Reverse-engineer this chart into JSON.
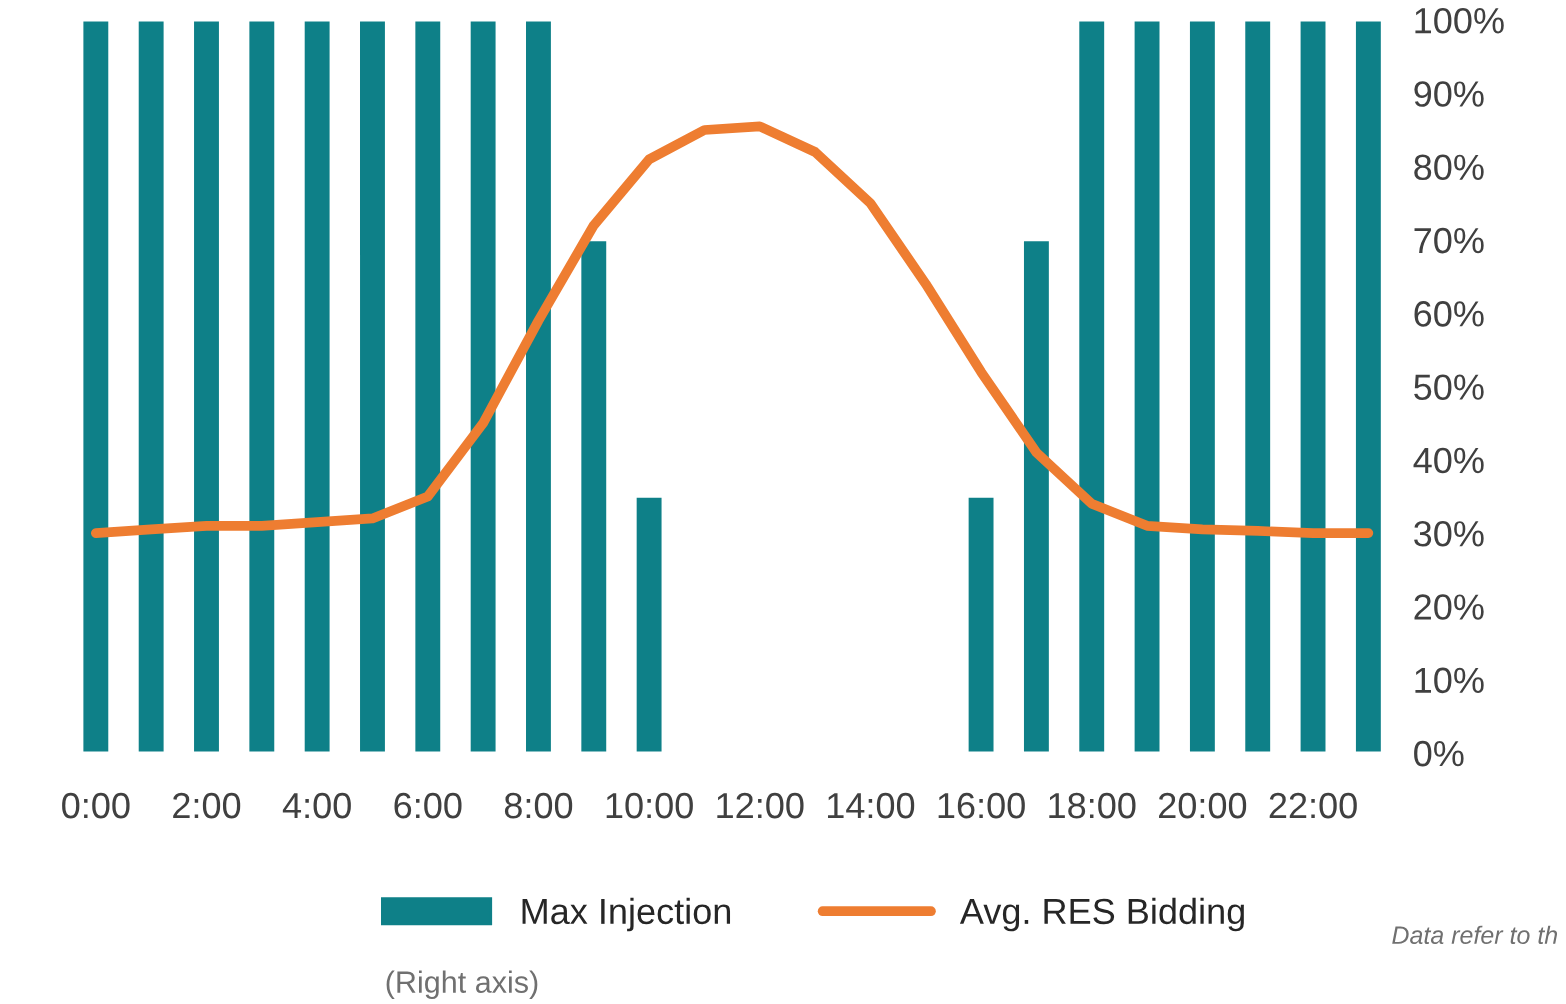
{
  "chart_data": {
    "type": "bar",
    "categories": [
      "0:00",
      null,
      "2:00",
      null,
      "4:00",
      null,
      "6:00",
      null,
      "8:00",
      null,
      "10:00",
      null,
      "12:00",
      null,
      "14:00",
      null,
      "16:00",
      null,
      "18:00",
      null,
      "20:00",
      null,
      "22:00",
      null
    ],
    "series": [
      {
        "name": "Max Injection",
        "axis": "y2",
        "color": "#0e8088",
        "values": [
          100,
          100,
          100,
          100,
          100,
          100,
          100,
          100,
          100,
          70,
          35,
          null,
          null,
          null,
          null,
          null,
          35,
          70,
          100,
          100,
          100,
          100,
          100,
          100
        ]
      },
      {
        "name": "Avg. RES Bidding",
        "type": "line",
        "axis": "y2",
        "color": "#ee7d31",
        "values": [
          30,
          30.5,
          31,
          31,
          31.5,
          32,
          35,
          45,
          59,
          72,
          81,
          85,
          85.5,
          82,
          75,
          64,
          52,
          41,
          34,
          31,
          30.5,
          30.3,
          30,
          30
        ]
      }
    ],
    "y2lim": [
      0,
      100
    ],
    "y2ticks": [
      {
        "value": 0,
        "label": "0%"
      },
      {
        "value": 10,
        "label": "10%"
      },
      {
        "value": 20,
        "label": "20%"
      },
      {
        "value": 30,
        "label": "30%"
      },
      {
        "value": 40,
        "label": "40%"
      },
      {
        "value": 50,
        "label": "50%"
      },
      {
        "value": 60,
        "label": "60%"
      },
      {
        "value": 70,
        "label": "70%"
      },
      {
        "value": 80,
        "label": "80%"
      },
      {
        "value": 90,
        "label": "90%"
      },
      {
        "value": 100,
        "label": "100%"
      }
    ],
    "grid": false,
    "legend": "bottom",
    "annotations": [
      "(Right axis)",
      "Data refer to th"
    ]
  }
}
